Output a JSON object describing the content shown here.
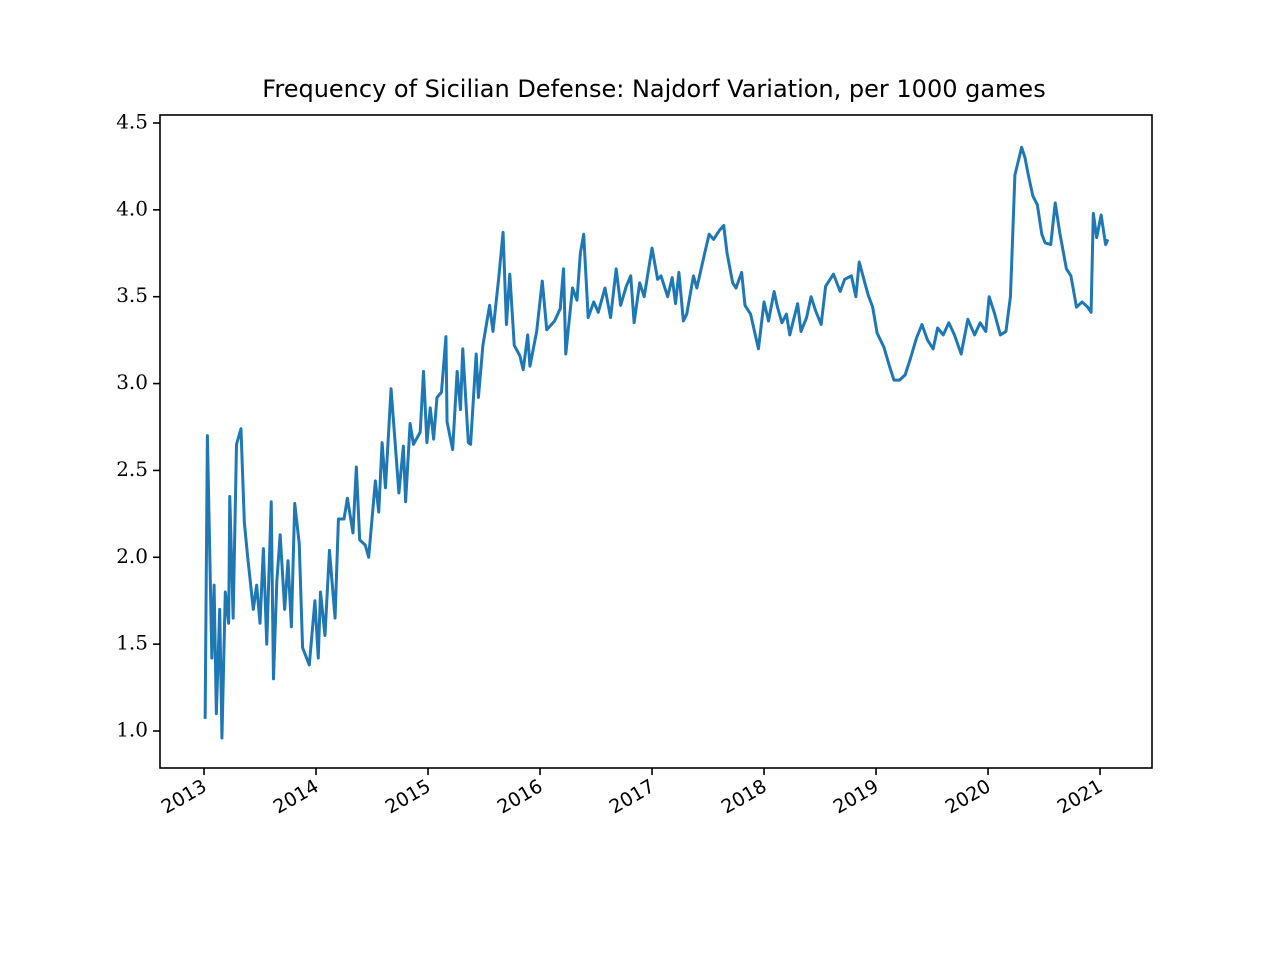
{
  "chart_data": {
    "type": "line",
    "title": "Frequency of Sicilian Defense: Najdorf Variation, per 1000 games",
    "color": "#1f77b4",
    "grid": false,
    "x": [
      2013.01,
      2013.03,
      2013.07,
      2013.09,
      2013.11,
      2013.14,
      2013.16,
      2013.19,
      2013.22,
      2013.23,
      2013.26,
      2013.29,
      2013.33,
      2013.36,
      2013.39,
      2013.44,
      2013.47,
      2013.5,
      2013.53,
      2013.56,
      2013.6,
      2013.62,
      2013.65,
      2013.68,
      2013.72,
      2013.75,
      2013.78,
      2013.81,
      2013.85,
      2013.88,
      2013.94,
      2013.99,
      2014.02,
      2014.04,
      2014.08,
      2014.12,
      2014.17,
      2014.2,
      2014.25,
      2014.28,
      2014.33,
      2014.36,
      2014.39,
      2014.44,
      2014.47,
      2014.53,
      2014.56,
      2014.59,
      2014.62,
      2014.67,
      2014.74,
      2014.78,
      2014.8,
      2014.84,
      2014.87,
      2014.93,
      2014.96,
      2014.99,
      2015.02,
      2015.05,
      2015.08,
      2015.12,
      2015.16,
      2015.17,
      2015.22,
      2015.26,
      2015.29,
      2015.31,
      2015.36,
      2015.38,
      2015.43,
      2015.45,
      2015.49,
      2015.55,
      2015.58,
      2015.63,
      2015.67,
      2015.7,
      2015.73,
      2015.77,
      2015.82,
      2015.85,
      2015.89,
      2015.91,
      2015.97,
      2016.02,
      2016.06,
      2016.13,
      2016.18,
      2016.21,
      2016.23,
      2016.29,
      2016.33,
      2016.36,
      2016.39,
      2016.43,
      2016.48,
      2016.52,
      2016.58,
      2016.63,
      2016.68,
      2016.72,
      2016.77,
      2016.81,
      2016.84,
      2016.89,
      2016.93,
      2017.0,
      2017.05,
      2017.08,
      2017.14,
      2017.18,
      2017.21,
      2017.24,
      2017.28,
      2017.31,
      2017.37,
      2017.4,
      2017.47,
      2017.51,
      2017.55,
      2017.6,
      2017.64,
      2017.67,
      2017.72,
      2017.75,
      2017.8,
      2017.83,
      2017.88,
      2017.95,
      2018.0,
      2018.04,
      2018.09,
      2018.12,
      2018.16,
      2018.2,
      2018.23,
      2018.3,
      2018.33,
      2018.38,
      2018.42,
      2018.46,
      2018.51,
      2018.55,
      2018.62,
      2018.68,
      2018.72,
      2018.78,
      2018.82,
      2018.85,
      2018.9,
      2018.93,
      2018.97,
      2019.01,
      2019.07,
      2019.12,
      2019.16,
      2019.21,
      2019.26,
      2019.31,
      2019.36,
      2019.41,
      2019.46,
      2019.51,
      2019.55,
      2019.6,
      2019.65,
      2019.7,
      2019.76,
      2019.82,
      2019.88,
      2019.93,
      2019.98,
      2020.01,
      2020.06,
      2020.11,
      2020.16,
      2020.2,
      2020.24,
      2020.3,
      2020.33,
      2020.36,
      2020.4,
      2020.44,
      2020.48,
      2020.51,
      2020.56,
      2020.6,
      2020.64,
      2020.7,
      2020.74,
      2020.79,
      2020.84,
      2020.89,
      2020.92,
      2020.94,
      2020.97,
      2021.01,
      2021.05,
      2021.07
    ],
    "values": [
      1.07,
      2.7,
      1.42,
      1.84,
      1.1,
      1.7,
      0.96,
      1.8,
      1.62,
      2.35,
      1.65,
      2.65,
      2.74,
      2.2,
      2.0,
      1.7,
      1.84,
      1.62,
      2.05,
      1.5,
      2.32,
      1.3,
      1.86,
      2.13,
      1.7,
      1.98,
      1.6,
      2.31,
      2.08,
      1.48,
      1.38,
      1.75,
      1.42,
      1.8,
      1.55,
      2.04,
      1.65,
      2.22,
      2.22,
      2.34,
      2.14,
      2.52,
      2.1,
      2.07,
      2.0,
      2.44,
      2.26,
      2.66,
      2.4,
      2.97,
      2.37,
      2.64,
      2.32,
      2.77,
      2.65,
      2.72,
      3.07,
      2.66,
      2.86,
      2.68,
      2.92,
      2.95,
      3.27,
      2.78,
      2.62,
      3.07,
      2.85,
      3.2,
      2.66,
      2.65,
      3.17,
      2.92,
      3.22,
      3.45,
      3.3,
      3.6,
      3.87,
      3.34,
      3.63,
      3.22,
      3.16,
      3.08,
      3.28,
      3.1,
      3.3,
      3.59,
      3.31,
      3.36,
      3.43,
      3.66,
      3.17,
      3.55,
      3.48,
      3.75,
      3.86,
      3.38,
      3.47,
      3.41,
      3.55,
      3.38,
      3.66,
      3.45,
      3.56,
      3.62,
      3.35,
      3.58,
      3.5,
      3.78,
      3.6,
      3.62,
      3.5,
      3.61,
      3.46,
      3.64,
      3.36,
      3.4,
      3.62,
      3.55,
      3.75,
      3.86,
      3.83,
      3.88,
      3.91,
      3.75,
      3.58,
      3.55,
      3.64,
      3.45,
      3.4,
      3.2,
      3.47,
      3.36,
      3.53,
      3.44,
      3.35,
      3.4,
      3.28,
      3.46,
      3.3,
      3.38,
      3.5,
      3.42,
      3.34,
      3.56,
      3.63,
      3.53,
      3.6,
      3.62,
      3.5,
      3.7,
      3.58,
      3.51,
      3.44,
      3.29,
      3.21,
      3.1,
      3.02,
      3.02,
      3.05,
      3.15,
      3.26,
      3.34,
      3.25,
      3.2,
      3.32,
      3.28,
      3.35,
      3.28,
      3.17,
      3.37,
      3.28,
      3.35,
      3.3,
      3.5,
      3.4,
      3.28,
      3.3,
      3.5,
      4.2,
      4.36,
      4.3,
      4.2,
      4.08,
      4.03,
      3.86,
      3.81,
      3.8,
      4.04,
      3.87,
      3.66,
      3.62,
      3.44,
      3.47,
      3.44,
      3.41,
      3.98,
      3.84,
      3.97,
      3.8,
      3.83
    ],
    "xlim": [
      2012.607,
      2021.464
    ],
    "xticks": [
      2013,
      2014,
      2015,
      2016,
      2017,
      2018,
      2019,
      2020,
      2021
    ],
    "ylim": [
      0.787,
      4.546
    ],
    "yticks": [
      {
        "value": 1.0,
        "label": "1.0"
      },
      {
        "value": 1.5,
        "label": "1.5"
      },
      {
        "value": 2.0,
        "label": "2.0"
      },
      {
        "value": 2.5,
        "label": "2.5"
      },
      {
        "value": 3.0,
        "label": "3.0"
      },
      {
        "value": 3.5,
        "label": "3.5"
      },
      {
        "value": 4.0,
        "label": "4.0"
      },
      {
        "value": 4.5,
        "label": "4.5"
      }
    ]
  }
}
